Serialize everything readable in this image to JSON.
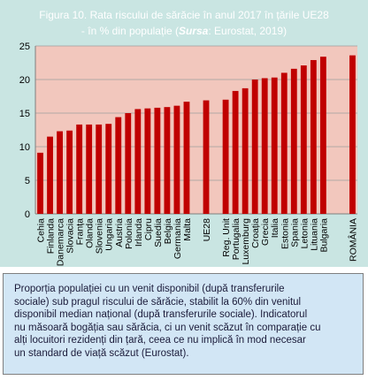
{
  "chart_data": {
    "type": "bar",
    "title_line1": "Figura 10. Rata riscului de sărăcie  în anul 2017 în țările UE28",
    "title_line2_prefix": "- în %  din populație (",
    "title_line2_sursa": "Sursa",
    "title_line2_suffix": ": Eurostat, 2019)",
    "categories": [
      "Cehia",
      "Finlanda",
      "Danemarca",
      "Slovacia",
      "Franța",
      "Olanda",
      "Slovenia",
      "Ungaria",
      "Austria",
      "Polonia",
      "Irlanda",
      "Cipru",
      "Suedia",
      "Belgia",
      "Germania",
      "Malta",
      "",
      "UE28",
      "",
      "Reg. Unit",
      "Portugalia",
      "Luxemburg",
      "Croația",
      "Grecia",
      "Italia",
      "Estonia",
      "Spania",
      "Letonia",
      "Lituania",
      "Bulgaria",
      "",
      "",
      "ROMÂNIA"
    ],
    "values": [
      9.1,
      11.5,
      12.3,
      12.4,
      13.3,
      13.3,
      13.3,
      13.4,
      14.4,
      15.0,
      15.6,
      15.7,
      15.8,
      15.9,
      16.1,
      16.7,
      null,
      16.9,
      null,
      17.0,
      18.3,
      18.7,
      20.0,
      20.2,
      20.3,
      21.0,
      21.6,
      22.1,
      22.9,
      23.4,
      null,
      null,
      23.6
    ],
    "ylim": [
      0,
      25
    ],
    "yticks": [
      "0",
      "5",
      "10",
      "15",
      "20",
      "25"
    ],
    "grid": true,
    "colors": {
      "bar": "#c00000",
      "plot_background": "#f2c7bd",
      "figure_background": "#c9e5e2",
      "grid": "#9e9e9e",
      "title_text": "#ffffff"
    }
  },
  "note": {
    "lines": [
      "Proporția populației cu un venit disponibil  (după transferurile",
      "sociale) sub pragul riscului de sărăcie, stabilit la 60%  din venitul",
      "disponibil  median  național (după transferurile sociale). Indicatorul",
      "nu măsoară bogăția sau sărăcia, ci un venit scăzut în comparație cu",
      "alți locuitori rezidenți din țară, ceea ce  nu implică în mod necesar",
      "un  standard de viață scăzut (Eurostat)."
    ]
  }
}
